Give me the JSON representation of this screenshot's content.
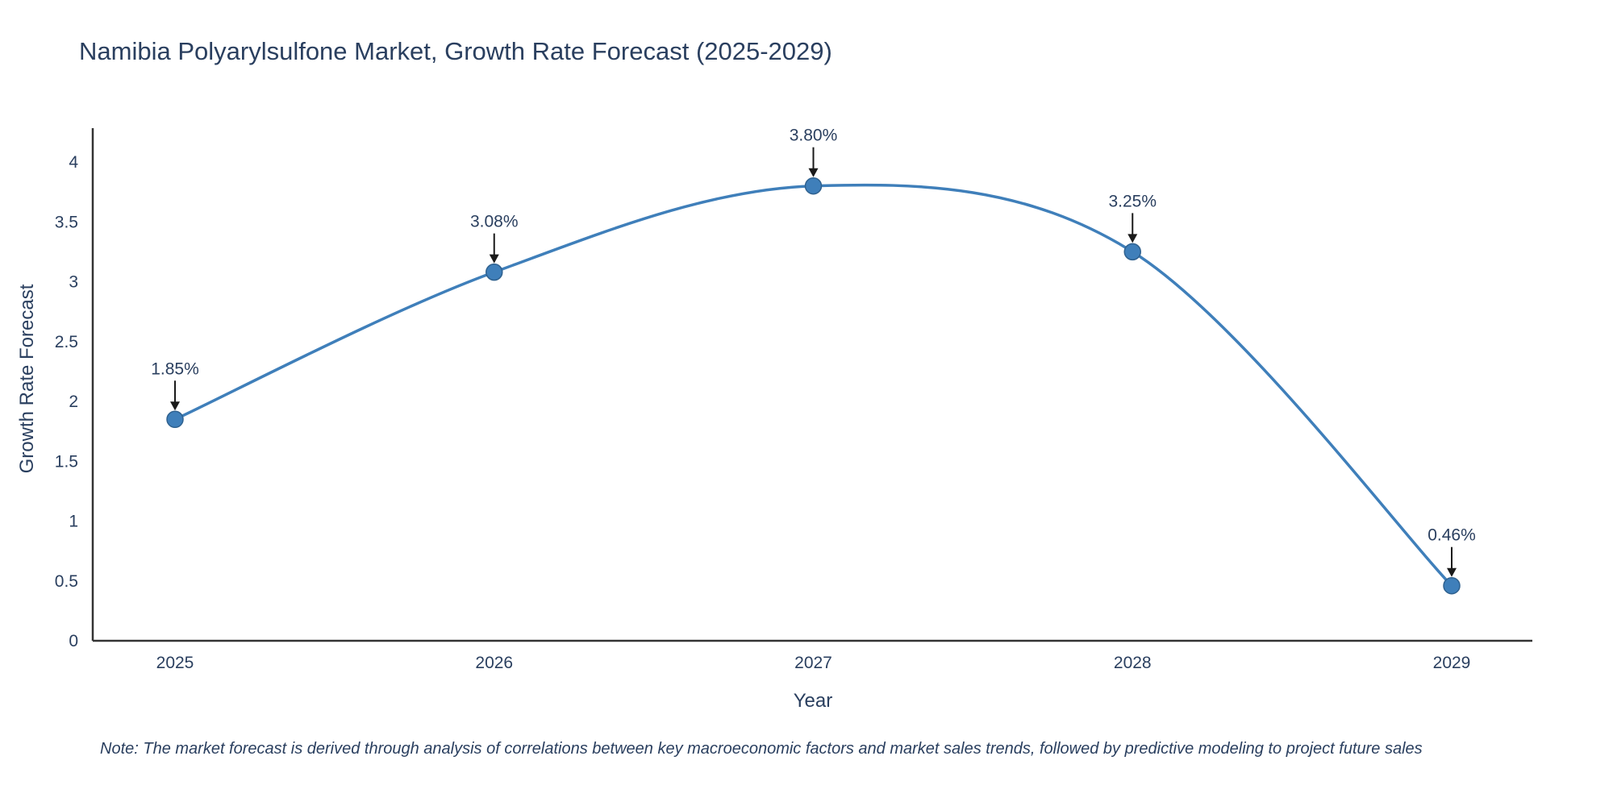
{
  "chart_data": {
    "type": "line",
    "title": "Namibia Polyarylsulfone Market, Growth Rate Forecast (2025-2029)",
    "xlabel": "Year",
    "ylabel": "Growth Rate Forecast",
    "x": [
      2025,
      2026,
      2027,
      2028,
      2029
    ],
    "y": [
      1.85,
      3.08,
      3.8,
      3.25,
      0.46
    ],
    "point_labels": [
      "1.85%",
      "3.08%",
      "3.80%",
      "3.25%",
      "0.46%"
    ],
    "ylim": [
      0,
      4.3
    ],
    "yticks": [
      0,
      0.5,
      1,
      1.5,
      2,
      2.5,
      3,
      3.5,
      4
    ],
    "ytick_labels": [
      "0",
      "0.5",
      "1",
      "1.5",
      "2",
      "2.5",
      "3",
      "3.5",
      "4"
    ],
    "line_shape": "spline",
    "grid": false,
    "legend": "none",
    "line_color": "#3f7fba",
    "marker_color": "#3f7fba",
    "marker_edge_color": "#2f618f",
    "axis_color": "#333333",
    "text_color": "#2a3f5f",
    "annotation_arrow_color": "#1a1a1a",
    "note": "Note: The market forecast is derived through analysis of correlations between key macroeconomic factors and market sales trends, followed by predictive modeling to project future sales"
  }
}
